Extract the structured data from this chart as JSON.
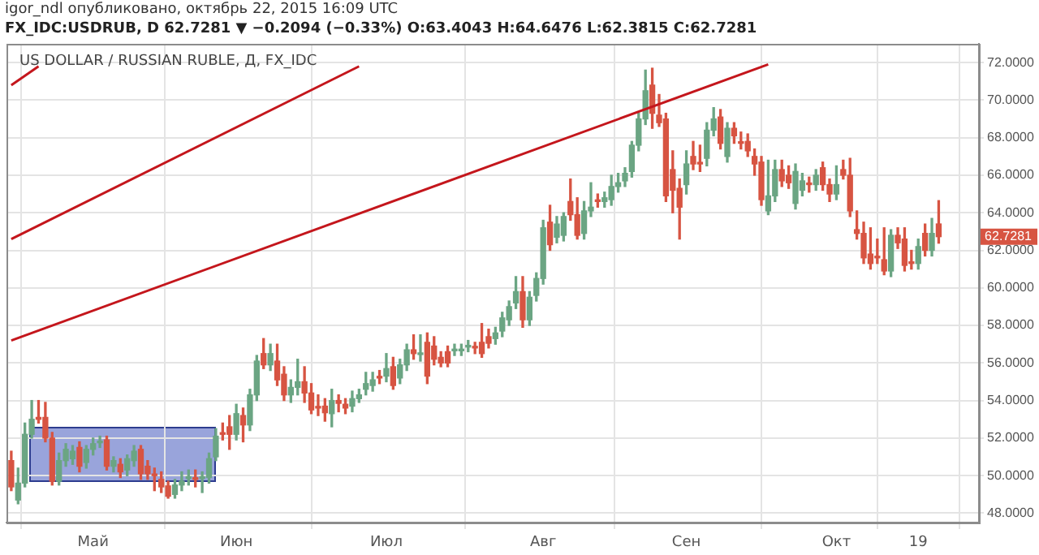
{
  "chart_data": {
    "type": "candlestick",
    "title": "US DOLLAR / RUSSIAN RUBLE, Д, FX_IDC",
    "subtitle": "FX_IDC:USDRUB, D 62.7281 ▼ −0.2094 (−0.33%) O:63.4043 H:64.6476 L:62.3815 C:62.7281",
    "annotations": [
      "igor_ndl опубликовано, октябрь 22, 2015 16:09 UTC",
      "62.7281"
    ],
    "categories": [
      null,
      null,
      null,
      null,
      null,
      null,
      null,
      null,
      null,
      null,
      null,
      null,
      "Май",
      null,
      null,
      null,
      null,
      null,
      null,
      null,
      null,
      null,
      null,
      null,
      null,
      null,
      null,
      null,
      null,
      null,
      null,
      null,
      null,
      "Июн",
      null,
      null,
      null,
      null,
      null,
      null,
      null,
      null,
      null,
      null,
      null,
      null,
      null,
      null,
      null,
      null,
      null,
      null,
      null,
      null,
      null,
      "Июл",
      null,
      null,
      null,
      null,
      null,
      null,
      null,
      null,
      null,
      null,
      null,
      null,
      null,
      null,
      null,
      null,
      null,
      null,
      null,
      null,
      null,
      null,
      "Авг",
      null,
      null,
      null,
      null,
      null,
      null,
      null,
      null,
      null,
      null,
      null,
      null,
      null,
      null,
      null,
      null,
      null,
      null,
      null,
      null,
      "Сен",
      null,
      null,
      null,
      null,
      null,
      null,
      null,
      null,
      null,
      null,
      null,
      null,
      null,
      null,
      null,
      null,
      null,
      null,
      null,
      null,
      null,
      "Окт",
      null,
      null,
      null,
      null,
      null,
      null,
      null,
      null,
      null,
      null,
      null,
      "19",
      null,
      null,
      null
    ],
    "ohlc": [
      [
        50.8,
        51.3,
        49.2,
        49.4
      ],
      [
        48.7,
        50.4,
        48.5,
        49.6
      ],
      [
        49.6,
        52.8,
        49.4,
        52.2
      ],
      [
        52.2,
        54.0,
        52.0,
        53.0
      ],
      [
        53.1,
        54.0,
        52.8,
        53.0
      ],
      [
        53.1,
        53.9,
        51.8,
        52.0
      ],
      [
        52.0,
        52.3,
        49.5,
        49.7
      ],
      [
        49.7,
        51.2,
        49.5,
        50.8
      ],
      [
        50.8,
        51.7,
        50.5,
        51.4
      ],
      [
        50.9,
        51.6,
        50.6,
        51.3
      ],
      [
        51.5,
        51.8,
        50.2,
        50.5
      ],
      [
        50.7,
        51.6,
        50.4,
        51.4
      ],
      [
        51.4,
        52.0,
        51.1,
        51.7
      ],
      [
        51.75,
        52.1,
        51.5,
        51.8
      ],
      [
        51.9,
        52.1,
        50.3,
        50.5
      ],
      [
        50.5,
        51.0,
        50.2,
        50.8
      ],
      [
        50.6,
        50.9,
        49.9,
        50.2
      ],
      [
        50.3,
        51.1,
        50.0,
        50.9
      ],
      [
        50.8,
        51.6,
        50.5,
        51.3
      ],
      [
        51.4,
        51.6,
        49.8,
        50.1
      ],
      [
        50.5,
        50.8,
        49.8,
        50.1
      ],
      [
        50.05,
        50.4,
        49.2,
        50.0
      ],
      [
        49.8,
        50.2,
        49.1,
        49.4
      ],
      [
        49.45,
        49.7,
        48.8,
        48.9
      ],
      [
        49.0,
        49.8,
        48.8,
        49.5
      ],
      [
        49.5,
        50.2,
        49.2,
        49.7
      ],
      [
        49.85,
        50.3,
        49.5,
        49.9
      ],
      [
        49.85,
        50.3,
        49.4,
        49.8
      ],
      [
        49.85,
        50.2,
        49.1,
        49.9
      ],
      [
        49.9,
        51.2,
        49.6,
        50.9
      ],
      [
        51.0,
        52.5,
        50.8,
        52.1
      ],
      [
        52.25,
        52.8,
        51.9,
        52.2
      ],
      [
        52.6,
        53.2,
        51.4,
        52.2
      ],
      [
        52.2,
        53.8,
        51.9,
        53.3
      ],
      [
        53.2,
        53.6,
        51.8,
        52.7
      ],
      [
        52.7,
        54.6,
        52.4,
        54.3
      ],
      [
        54.3,
        56.4,
        54.0,
        56.1
      ],
      [
        56.5,
        57.3,
        55.7,
        55.9
      ],
      [
        55.9,
        57.0,
        55.6,
        56.5
      ],
      [
        56.1,
        57.0,
        54.8,
        55.1
      ],
      [
        55.4,
        55.8,
        54.0,
        54.3
      ],
      [
        54.3,
        55.1,
        53.9,
        54.7
      ],
      [
        54.7,
        56.2,
        54.3,
        55.0
      ],
      [
        55.0,
        55.8,
        53.9,
        54.4
      ],
      [
        54.4,
        54.9,
        53.3,
        53.5
      ],
      [
        53.65,
        54.3,
        53.2,
        53.6
      ],
      [
        53.7,
        54.1,
        52.9,
        53.35
      ],
      [
        53.3,
        54.6,
        52.6,
        54.0
      ],
      [
        54.0,
        54.3,
        53.4,
        53.85
      ],
      [
        53.8,
        54.1,
        53.3,
        53.6
      ],
      [
        53.7,
        54.5,
        53.4,
        54.1
      ],
      [
        54.1,
        54.6,
        53.9,
        54.3
      ],
      [
        54.6,
        55.5,
        54.3,
        54.9
      ],
      [
        54.8,
        55.5,
        54.5,
        55.1
      ],
      [
        55.25,
        55.6,
        54.9,
        55.2
      ],
      [
        55.3,
        56.5,
        55.0,
        55.7
      ],
      [
        55.8,
        56.3,
        54.6,
        54.8
      ],
      [
        55.2,
        56.2,
        54.9,
        55.9
      ],
      [
        55.9,
        57.0,
        55.6,
        56.7
      ],
      [
        56.7,
        57.5,
        56.2,
        56.5
      ],
      [
        56.45,
        57.5,
        56.1,
        56.5
      ],
      [
        57.1,
        57.6,
        54.9,
        55.3
      ],
      [
        56.9,
        57.4,
        55.9,
        56.2
      ],
      [
        56.3,
        56.6,
        55.8,
        56.0
      ],
      [
        56.6,
        56.9,
        55.8,
        56.0
      ],
      [
        56.65,
        57.0,
        56.4,
        56.7
      ],
      [
        56.65,
        57.0,
        56.4,
        56.7
      ],
      [
        56.85,
        57.2,
        56.6,
        56.9
      ],
      [
        56.85,
        57.1,
        56.5,
        56.8
      ],
      [
        57.1,
        58.1,
        56.3,
        56.5
      ],
      [
        57.4,
        57.8,
        56.8,
        57.05
      ],
      [
        57.3,
        57.9,
        57.0,
        57.6
      ],
      [
        57.7,
        58.7,
        57.4,
        58.4
      ],
      [
        58.3,
        59.3,
        58.0,
        59.0
      ],
      [
        59.2,
        60.6,
        58.9,
        59.8
      ],
      [
        59.8,
        60.6,
        57.9,
        58.3
      ],
      [
        58.3,
        59.8,
        58.0,
        59.5
      ],
      [
        59.6,
        60.8,
        59.3,
        60.5
      ],
      [
        60.5,
        63.6,
        60.2,
        63.2
      ],
      [
        63.5,
        64.4,
        62.0,
        62.3
      ],
      [
        62.7,
        63.8,
        62.4,
        63.4
      ],
      [
        62.8,
        64.0,
        62.5,
        63.8
      ],
      [
        64.6,
        65.8,
        63.6,
        63.9
      ],
      [
        63.9,
        64.8,
        62.6,
        62.8
      ],
      [
        62.9,
        64.6,
        62.6,
        64.1
      ],
      [
        64.1,
        65.6,
        63.8,
        64.3
      ],
      [
        64.65,
        65.0,
        64.3,
        64.6
      ],
      [
        64.6,
        65.1,
        64.3,
        64.8
      ],
      [
        64.7,
        66.0,
        64.4,
        65.4
      ],
      [
        65.4,
        66.1,
        65.1,
        65.6
      ],
      [
        65.7,
        66.4,
        65.4,
        66.1
      ],
      [
        66.2,
        67.8,
        65.9,
        67.6
      ],
      [
        67.6,
        69.3,
        67.3,
        69.0
      ],
      [
        69.0,
        71.6,
        68.7,
        70.5
      ],
      [
        70.8,
        71.7,
        68.5,
        69.3
      ],
      [
        69.2,
        70.3,
        68.6,
        68.8
      ],
      [
        69.0,
        69.3,
        64.6,
        64.9
      ],
      [
        66.3,
        67.3,
        64.0,
        65.2
      ],
      [
        65.3,
        65.8,
        62.6,
        64.3
      ],
      [
        65.5,
        67.3,
        65.0,
        66.6
      ],
      [
        67.0,
        67.8,
        66.3,
        66.6
      ],
      [
        66.65,
        67.6,
        66.2,
        66.6
      ],
      [
        66.9,
        68.8,
        66.5,
        68.4
      ],
      [
        68.4,
        69.6,
        68.1,
        69.0
      ],
      [
        69.1,
        69.5,
        67.4,
        67.7
      ],
      [
        67.0,
        68.8,
        66.7,
        68.5
      ],
      [
        68.5,
        68.8,
        67.7,
        68.1
      ],
      [
        67.75,
        68.3,
        67.4,
        67.7
      ],
      [
        67.8,
        68.2,
        67.0,
        67.3
      ],
      [
        67.0,
        67.4,
        66.0,
        66.6
      ],
      [
        66.7,
        67.0,
        64.4,
        64.7
      ],
      [
        64.1,
        66.8,
        63.9,
        64.9
      ],
      [
        64.9,
        66.8,
        64.6,
        66.3
      ],
      [
        66.3,
        66.8,
        65.4,
        65.7
      ],
      [
        66.0,
        66.5,
        65.3,
        65.6
      ],
      [
        64.5,
        66.6,
        64.2,
        66.2
      ],
      [
        65.2,
        66.1,
        64.9,
        65.7
      ],
      [
        65.55,
        65.9,
        65.1,
        65.5
      ],
      [
        65.5,
        66.3,
        65.2,
        66.0
      ],
      [
        66.4,
        66.7,
        65.2,
        65.5
      ],
      [
        65.5,
        65.8,
        64.6,
        65.0
      ],
      [
        65.0,
        66.5,
        64.7,
        65.5
      ],
      [
        66.3,
        66.8,
        65.8,
        66.0
      ],
      [
        66.0,
        66.9,
        63.8,
        64.1
      ],
      [
        63.1,
        64.1,
        62.6,
        62.9
      ],
      [
        62.9,
        63.5,
        61.3,
        61.6
      ],
      [
        61.8,
        63.2,
        61.0,
        61.3
      ],
      [
        61.65,
        62.6,
        61.3,
        61.6
      ],
      [
        61.5,
        63.2,
        60.7,
        60.9
      ],
      [
        60.9,
        63.1,
        60.6,
        62.8
      ],
      [
        62.8,
        63.2,
        62.1,
        62.4
      ],
      [
        62.6,
        63.2,
        60.9,
        61.2
      ],
      [
        61.35,
        62.0,
        61.0,
        61.3
      ],
      [
        61.3,
        62.6,
        61.0,
        62.2
      ],
      [
        62.9,
        63.4,
        61.7,
        62.0
      ],
      [
        62.0,
        63.7,
        61.7,
        62.9
      ],
      [
        63.4043,
        64.6476,
        62.3815,
        62.7281
      ]
    ],
    "colors": [
      "#d75442",
      "#6ba583",
      "#6ba583",
      "#6ba583",
      "#d75442",
      "#d75442",
      "#d75442",
      "#6ba583",
      "#6ba583",
      "#6ba583",
      "#d75442",
      "#6ba583",
      "#6ba583",
      "#6ba583",
      "#d75442",
      "#6ba583",
      "#d75442",
      "#6ba583",
      "#6ba583",
      "#d75442",
      "#d75442",
      "#d75442",
      "#d75442",
      "#d75442",
      "#6ba583",
      "#6ba583",
      "#6ba583",
      "#d75442",
      "#6ba583",
      "#6ba583",
      "#6ba583",
      "#d75442",
      "#d75442",
      "#6ba583",
      "#d75442",
      "#6ba583",
      "#6ba583",
      "#d75442",
      "#6ba583",
      "#d75442",
      "#d75442",
      "#6ba583",
      "#6ba583",
      "#d75442",
      "#d75442",
      "#d75442",
      "#d75442",
      "#6ba583",
      "#d75442",
      "#d75442",
      "#6ba583",
      "#6ba583",
      "#6ba583",
      "#6ba583",
      "#d75442",
      "#6ba583",
      "#d75442",
      "#6ba583",
      "#6ba583",
      "#d75442",
      "#6ba583",
      "#d75442",
      "#d75442",
      "#d75442",
      "#d75442",
      "#6ba583",
      "#6ba583",
      "#6ba583",
      "#d75442",
      "#d75442",
      "#d75442",
      "#6ba583",
      "#6ba583",
      "#6ba583",
      "#6ba583",
      "#d75442",
      "#6ba583",
      "#6ba583",
      "#6ba583",
      "#d75442",
      "#6ba583",
      "#6ba583",
      "#d75442",
      "#d75442",
      "#6ba583",
      "#6ba583",
      "#d75442",
      "#6ba583",
      "#6ba583",
      "#6ba583",
      "#6ba583",
      "#6ba583",
      "#6ba583",
      "#6ba583",
      "#d75442",
      "#d75442",
      "#d75442",
      "#d75442",
      "#d75442",
      "#6ba583",
      "#d75442",
      "#d75442",
      "#6ba583",
      "#6ba583",
      "#d75442",
      "#6ba583",
      "#d75442",
      "#d75442",
      "#d75442",
      "#d75442",
      "#d75442",
      "#6ba583",
      "#6ba583",
      "#d75442",
      "#d75442",
      "#6ba583",
      "#6ba583",
      "#d75442",
      "#6ba583",
      "#d75442",
      "#d75442",
      "#6ba583",
      "#d75442",
      "#d75442",
      "#d75442",
      "#d75442",
      "#d75442",
      "#d75442",
      "#d75442",
      "#6ba583",
      "#d75442",
      "#d75442",
      "#d75442",
      "#6ba583",
      "#d75442",
      "#6ba583",
      "#d75442"
    ],
    "series": [
      {
        "type": "line",
        "color": "#c4161c",
        "values": [
          70.8,
          null,
          null,
          null,
          71.8,
          null,
          null,
          null,
          null,
          null,
          null,
          null,
          null,
          null,
          null,
          null,
          null,
          null,
          null,
          null,
          null,
          null,
          null,
          null,
          null,
          null,
          null,
          null,
          null,
          null,
          null,
          null,
          null,
          null,
          null,
          null,
          null,
          null,
          null,
          null,
          null,
          null,
          null,
          null,
          null,
          null,
          null,
          null,
          null,
          null,
          null,
          null,
          null,
          null,
          null,
          null,
          null,
          null,
          null,
          null,
          null,
          null,
          null,
          null,
          null,
          null,
          null,
          null,
          null,
          null,
          null,
          null,
          null,
          null,
          null,
          null,
          null,
          null,
          null,
          null,
          null,
          null,
          null,
          null,
          null,
          null,
          null,
          null,
          null,
          null,
          null,
          null,
          null,
          null,
          null,
          null,
          null,
          null,
          null,
          null,
          null,
          null,
          null,
          null,
          null,
          null,
          null,
          null,
          null,
          null,
          null,
          null,
          null,
          null,
          null,
          null,
          null,
          null,
          null,
          null,
          null,
          null,
          null,
          null,
          null,
          null,
          null,
          null,
          null,
          null,
          null,
          null,
          null,
          null,
          null,
          null,
          null
        ]
      },
      {
        "type": "line",
        "color": "#c4161c",
        "values": [
          62.6,
          null,
          null,
          null,
          null,
          null,
          null,
          null,
          null,
          null,
          null,
          null,
          null,
          null,
          null,
          null,
          null,
          null,
          null,
          null,
          null,
          null,
          null,
          null,
          null,
          null,
          null,
          null,
          null,
          null,
          null,
          null,
          null,
          null,
          null,
          null,
          null,
          null,
          null,
          null,
          null,
          null,
          null,
          null,
          null,
          null,
          null,
          null,
          null,
          null,
          null,
          71.8,
          null,
          null,
          null,
          null,
          null,
          null,
          null,
          null,
          null,
          null,
          null,
          null,
          null,
          null,
          null,
          null,
          null,
          null,
          null,
          null,
          null,
          null,
          null,
          null,
          null,
          null,
          null,
          null,
          null,
          null,
          null,
          null,
          null,
          null,
          null,
          null,
          null,
          null,
          null,
          null,
          null,
          null,
          null,
          null,
          null,
          null,
          null,
          null,
          null,
          null,
          null,
          null,
          null,
          null,
          null,
          null,
          null,
          null,
          null,
          null,
          null,
          null,
          null,
          null,
          null,
          null,
          null,
          null,
          null,
          null,
          null,
          null,
          null,
          null,
          null,
          null,
          null,
          null,
          null,
          null,
          null,
          null,
          null,
          null,
          null
        ]
      },
      {
        "type": "line",
        "color": "#c4161c",
        "values": [
          57.2,
          null,
          null,
          null,
          null,
          null,
          null,
          null,
          null,
          null,
          null,
          null,
          null,
          null,
          null,
          null,
          null,
          null,
          null,
          null,
          null,
          null,
          null,
          null,
          null,
          null,
          null,
          null,
          null,
          null,
          null,
          null,
          null,
          null,
          null,
          null,
          null,
          null,
          null,
          null,
          null,
          null,
          null,
          null,
          null,
          null,
          null,
          null,
          null,
          null,
          null,
          null,
          null,
          null,
          null,
          null,
          null,
          null,
          null,
          null,
          null,
          null,
          null,
          null,
          null,
          null,
          null,
          null,
          null,
          null,
          null,
          null,
          null,
          null,
          null,
          null,
          null,
          null,
          null,
          null,
          null,
          null,
          null,
          null,
          null,
          null,
          null,
          null,
          null,
          null,
          null,
          null,
          null,
          null,
          null,
          null,
          null,
          null,
          null,
          null,
          null,
          null,
          null,
          null,
          null,
          null,
          null,
          null,
          null,
          null,
          null,
          71.9,
          null,
          null,
          null,
          null,
          null,
          null,
          null,
          null,
          null,
          null,
          null,
          null,
          null,
          null,
          null,
          null,
          null,
          null,
          null,
          null,
          null,
          null,
          null,
          null,
          null
        ]
      }
    ],
    "ylim": [
      47.5,
      73
    ],
    "yticks": [
      {
        "value": 48,
        "label": "48.0000"
      },
      {
        "value": 50,
        "label": "50.0000"
      },
      {
        "value": 52,
        "label": "52.0000"
      },
      {
        "value": 54,
        "label": "54.0000"
      },
      {
        "value": 56,
        "label": "56.0000"
      },
      {
        "value": 58,
        "label": "58.0000"
      },
      {
        "value": 60,
        "label": "60.0000"
      },
      {
        "value": 62,
        "label": "62.0000"
      },
      {
        "value": 64,
        "label": "64.0000"
      },
      {
        "value": 66,
        "label": "66.0000"
      },
      {
        "value": 68,
        "label": "68.0000"
      },
      {
        "value": 70,
        "label": "70.0000"
      },
      {
        "value": 72,
        "label": "72.0000"
      }
    ],
    "grid": true
  }
}
